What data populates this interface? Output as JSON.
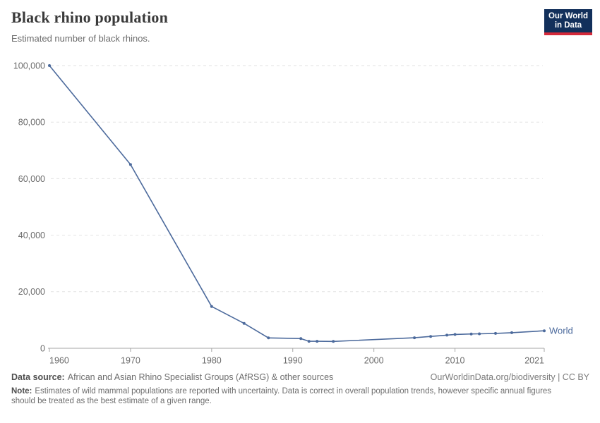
{
  "header": {
    "logo": {
      "line1": "Our World",
      "line2": "in Data",
      "bg_color": "#12305b",
      "accent_color": "#d4293a"
    }
  },
  "chart_data": {
    "type": "line",
    "title": "Black rhino population",
    "subtitle": "Estimated number of black rhinos.",
    "x": [
      1960,
      1970,
      1980,
      1984,
      1987,
      1991,
      1992,
      1993,
      1995,
      2005,
      2007,
      2009,
      2010,
      2012,
      2013,
      2015,
      2017,
      2021
    ],
    "series": [
      {
        "name": "World",
        "color": "#4c6a9c",
        "values": [
          100000,
          65000,
          14785,
          8800,
          3665,
          3450,
          2475,
          2475,
          2410,
          3726,
          4180,
          4650,
          4880,
          5055,
          5100,
          5250,
          5500,
          6195
        ]
      }
    ],
    "xticks": [
      {
        "value": 1960,
        "label": "1960"
      },
      {
        "value": 1970,
        "label": "1970"
      },
      {
        "value": 1980,
        "label": "1980"
      },
      {
        "value": 1990,
        "label": "1990"
      },
      {
        "value": 2000,
        "label": "2000"
      },
      {
        "value": 2010,
        "label": "2010"
      },
      {
        "value": 2021,
        "label": "2021"
      }
    ],
    "yticks": [
      {
        "value": 0,
        "label": "0"
      },
      {
        "value": 20000,
        "label": "20,000"
      },
      {
        "value": 40000,
        "label": "40,000"
      },
      {
        "value": 60000,
        "label": "60,000"
      },
      {
        "value": 80000,
        "label": "80,000"
      },
      {
        "value": 100000,
        "label": "100,000"
      }
    ],
    "xlim": [
      1960,
      2021
    ],
    "ylim": [
      0,
      100000
    ],
    "grid": "horizontal-dashed",
    "gridline_color": "#e2e2e2",
    "axis_color": "#a6a6a6",
    "legend_position": "end-of-line"
  },
  "footer": {
    "data_source_label": "Data source:",
    "data_source_text": "African and Asian Rhino Specialist Groups (AfRSG) & other sources",
    "attribution": "OurWorldinData.org/biodiversity | CC BY",
    "note_label": "Note:",
    "note_text": "Estimates of wild mammal populations are reported with uncertainty. Data is correct in overall population trends, however specific annual figures should be treated as the best estimate of a given range."
  }
}
